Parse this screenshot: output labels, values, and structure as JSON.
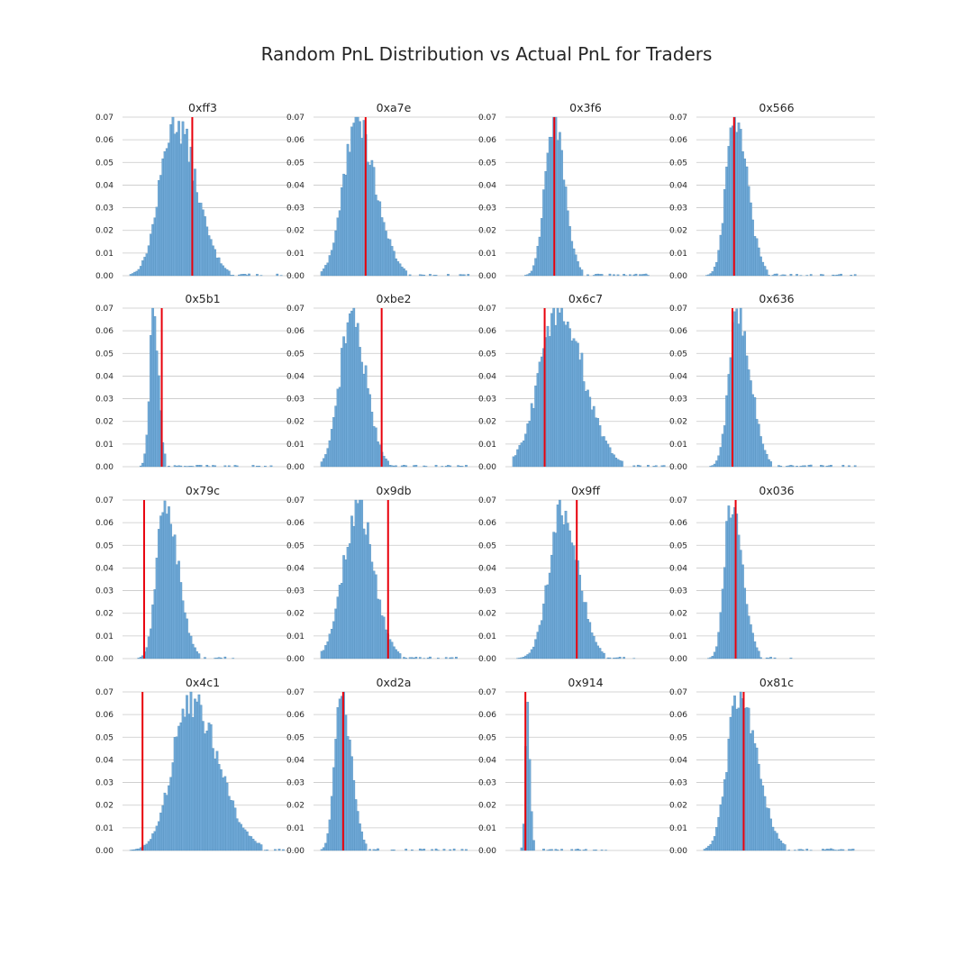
{
  "figure_title": "Random PnL Distribution vs Actual PnL for Traders",
  "colors": {
    "bar": "#6fa8d6",
    "bar_edge": "#3f7fae",
    "actual_line": "#e8000b",
    "grid": "#c8c8c8"
  },
  "chart_data": [
    {
      "type": "bar",
      "title": "0xff3",
      "ylim": [
        0,
        0.07
      ],
      "yticks": [
        "0.00",
        "0.01",
        "0.02",
        "0.03",
        "0.04",
        "0.05",
        "0.06",
        "0.07"
      ],
      "grid": "horizontal",
      "peak": 0.069,
      "mode": 0.28,
      "left_width": 0.09,
      "right_width": 0.13,
      "tail": 0.95,
      "actual": 0.39
    },
    {
      "type": "bar",
      "title": "0xa7e",
      "ylim": [
        0,
        0.07
      ],
      "yticks": [
        "0.00",
        "0.01",
        "0.02",
        "0.03",
        "0.04",
        "0.05",
        "0.06",
        "0.07"
      ],
      "grid": "horizontal",
      "peak": 0.068,
      "mode": 0.22,
      "left_width": 0.08,
      "right_width": 0.12,
      "tail": 0.92,
      "actual": 0.28
    },
    {
      "type": "bar",
      "title": "0x3f6",
      "ylim": [
        0,
        0.07
      ],
      "yticks": [
        "0.00",
        "0.01",
        "0.02",
        "0.03",
        "0.04",
        "0.05",
        "0.06",
        "0.07"
      ],
      "grid": "horizontal",
      "peak": 0.07,
      "mode": 0.25,
      "left_width": 0.05,
      "right_width": 0.07,
      "tail": 0.85,
      "actual": 0.26
    },
    {
      "type": "bar",
      "title": "0x566",
      "ylim": [
        0,
        0.07
      ],
      "yticks": [
        "0.00",
        "0.01",
        "0.02",
        "0.03",
        "0.04",
        "0.05",
        "0.06",
        "0.07"
      ],
      "grid": "horizontal",
      "peak": 0.07,
      "mode": 0.19,
      "left_width": 0.05,
      "right_width": 0.08,
      "tail": 0.95,
      "actual": 0.19
    },
    {
      "type": "bar",
      "title": "0x5b1",
      "ylim": [
        0,
        0.07
      ],
      "yticks": [
        "0.00",
        "0.01",
        "0.02",
        "0.03",
        "0.04",
        "0.05",
        "0.06",
        "0.07"
      ],
      "grid": "horizontal",
      "peak": 0.07,
      "mode": 0.15,
      "left_width": 0.025,
      "right_width": 0.03,
      "tail": 0.95,
      "actual": 0.2
    },
    {
      "type": "bar",
      "title": "0xbe2",
      "ylim": [
        0,
        0.07
      ],
      "yticks": [
        "0.00",
        "0.01",
        "0.02",
        "0.03",
        "0.04",
        "0.05",
        "0.06",
        "0.07"
      ],
      "grid": "horizontal",
      "peak": 0.067,
      "mode": 0.19,
      "left_width": 0.07,
      "right_width": 0.09,
      "tail": 0.92,
      "actual": 0.38
    },
    {
      "type": "bar",
      "title": "0x6c7",
      "ylim": [
        0,
        0.07
      ],
      "yticks": [
        "0.00",
        "0.01",
        "0.02",
        "0.03",
        "0.04",
        "0.05",
        "0.06",
        "0.07"
      ],
      "grid": "horizontal",
      "peak": 0.07,
      "mode": 0.29,
      "left_width": 0.12,
      "right_width": 0.15,
      "tail": 0.95,
      "actual": 0.2
    },
    {
      "type": "bar",
      "title": "0x636",
      "ylim": [
        0,
        0.07
      ],
      "yticks": [
        "0.00",
        "0.01",
        "0.02",
        "0.03",
        "0.04",
        "0.05",
        "0.06",
        "0.07"
      ],
      "grid": "horizontal",
      "peak": 0.07,
      "mode": 0.21,
      "left_width": 0.05,
      "right_width": 0.08,
      "tail": 0.95,
      "actual": 0.18
    },
    {
      "type": "bar",
      "title": "0x79c",
      "ylim": [
        0,
        0.07
      ],
      "yticks": [
        "0.00",
        "0.01",
        "0.02",
        "0.03",
        "0.04",
        "0.05",
        "0.06",
        "0.07"
      ],
      "grid": "horizontal",
      "peak": 0.07,
      "mode": 0.22,
      "left_width": 0.05,
      "right_width": 0.08,
      "tail": 0.65,
      "actual": 0.09
    },
    {
      "type": "bar",
      "title": "0x9db",
      "ylim": [
        0,
        0.07
      ],
      "yticks": [
        "0.00",
        "0.01",
        "0.02",
        "0.03",
        "0.04",
        "0.05",
        "0.06",
        "0.07"
      ],
      "grid": "horizontal",
      "peak": 0.066,
      "mode": 0.23,
      "left_width": 0.09,
      "right_width": 0.1,
      "tail": 0.85,
      "actual": 0.42
    },
    {
      "type": "bar",
      "title": "0x9ff",
      "ylim": [
        0,
        0.07
      ],
      "yticks": [
        "0.00",
        "0.01",
        "0.02",
        "0.03",
        "0.04",
        "0.05",
        "0.06",
        "0.07"
      ],
      "grid": "horizontal",
      "peak": 0.067,
      "mode": 0.31,
      "left_width": 0.08,
      "right_width": 0.1,
      "tail": 0.78,
      "actual": 0.4
    },
    {
      "type": "bar",
      "title": "0x036",
      "ylim": [
        0,
        0.07
      ],
      "yticks": [
        "0.00",
        "0.01",
        "0.02",
        "0.03",
        "0.04",
        "0.05",
        "0.06",
        "0.07"
      ],
      "grid": "horizontal",
      "peak": 0.068,
      "mode": 0.17,
      "left_width": 0.04,
      "right_width": 0.07,
      "tail": 0.55,
      "actual": 0.2
    },
    {
      "type": "bar",
      "title": "0x4c1",
      "ylim": [
        0,
        0.07
      ],
      "yticks": [
        "0.00",
        "0.01",
        "0.02",
        "0.03",
        "0.04",
        "0.05",
        "0.06",
        "0.07"
      ],
      "grid": "horizontal",
      "peak": 0.067,
      "mode": 0.38,
      "left_width": 0.11,
      "right_width": 0.17,
      "tail": 0.96,
      "actual": 0.08
    },
    {
      "type": "bar",
      "title": "0xd2a",
      "ylim": [
        0,
        0.07
      ],
      "yticks": [
        "0.00",
        "0.01",
        "0.02",
        "0.03",
        "0.04",
        "0.05",
        "0.06",
        "0.07"
      ],
      "grid": "horizontal",
      "peak": 0.07,
      "mode": 0.13,
      "left_width": 0.04,
      "right_width": 0.06,
      "tail": 0.95,
      "actual": 0.14
    },
    {
      "type": "bar",
      "title": "0x914",
      "ylim": [
        0,
        0.07
      ],
      "yticks": [
        "0.00",
        "0.01",
        "0.02",
        "0.03",
        "0.04",
        "0.05",
        "0.06",
        "0.07"
      ],
      "grid": "horizontal",
      "peak": 0.063,
      "mode": 0.09,
      "left_width": 0.012,
      "right_width": 0.018,
      "tail": 0.6,
      "actual": 0.08
    },
    {
      "type": "bar",
      "title": "0x81c",
      "ylim": [
        0,
        0.07
      ],
      "yticks": [
        "0.00",
        "0.01",
        "0.02",
        "0.03",
        "0.04",
        "0.05",
        "0.06",
        "0.07"
      ],
      "grid": "horizontal",
      "peak": 0.07,
      "mode": 0.22,
      "left_width": 0.07,
      "right_width": 0.11,
      "tail": 0.95,
      "actual": 0.25
    }
  ]
}
